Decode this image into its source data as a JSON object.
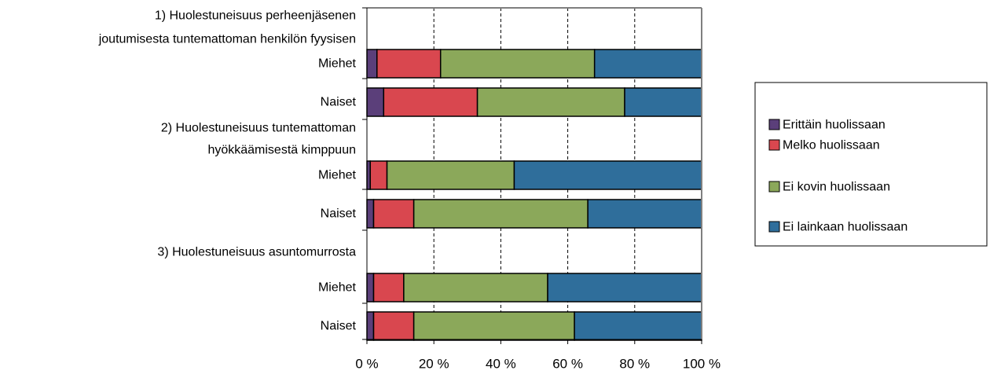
{
  "chart_data": {
    "type": "bar",
    "orientation": "horizontal",
    "stacked": true,
    "xlim": [
      0,
      100
    ],
    "x_ticks": [
      "0 %",
      "20 %",
      "40 %",
      "60 %",
      "80 %",
      "100 %"
    ],
    "grid": "vertical dashed",
    "legend_position": "right",
    "groups": [
      {
        "title_lines": [
          "1) Huolestuneisuus perheenjäsenen",
          "joutumisesta tuntemattoman henkilön fyysisen"
        ]
      },
      {
        "title_lines": [
          "2) Huolestuneisuus tuntemattoman",
          "hyökkäämisestä kimppuun"
        ]
      },
      {
        "title_lines": [
          "3) Huolestuneisuus asuntomurrosta"
        ]
      }
    ],
    "bars": [
      {
        "group": 0,
        "label": "Miehet",
        "values": [
          3,
          19,
          46,
          32
        ]
      },
      {
        "group": 0,
        "label": "Naiset",
        "values": [
          5,
          28,
          44,
          23
        ]
      },
      {
        "group": 1,
        "label": "Miehet",
        "values": [
          1,
          5,
          38,
          56
        ]
      },
      {
        "group": 1,
        "label": "Naiset",
        "values": [
          2,
          12,
          52,
          34
        ]
      },
      {
        "group": 2,
        "label": "Miehet",
        "values": [
          2,
          9,
          43,
          46
        ]
      },
      {
        "group": 2,
        "label": "Naiset",
        "values": [
          2,
          12,
          48,
          38
        ]
      }
    ],
    "series": [
      {
        "name": "Erittäin huolissaan",
        "color": "#5b3f7a"
      },
      {
        "name": "Melko huolissaan",
        "color": "#d9474f"
      },
      {
        "name": "Ei kovin huolissaan",
        "color": "#8ba85a"
      },
      {
        "name": "Ei lainkaan huolissaan",
        "color": "#2f6e9b"
      }
    ]
  }
}
